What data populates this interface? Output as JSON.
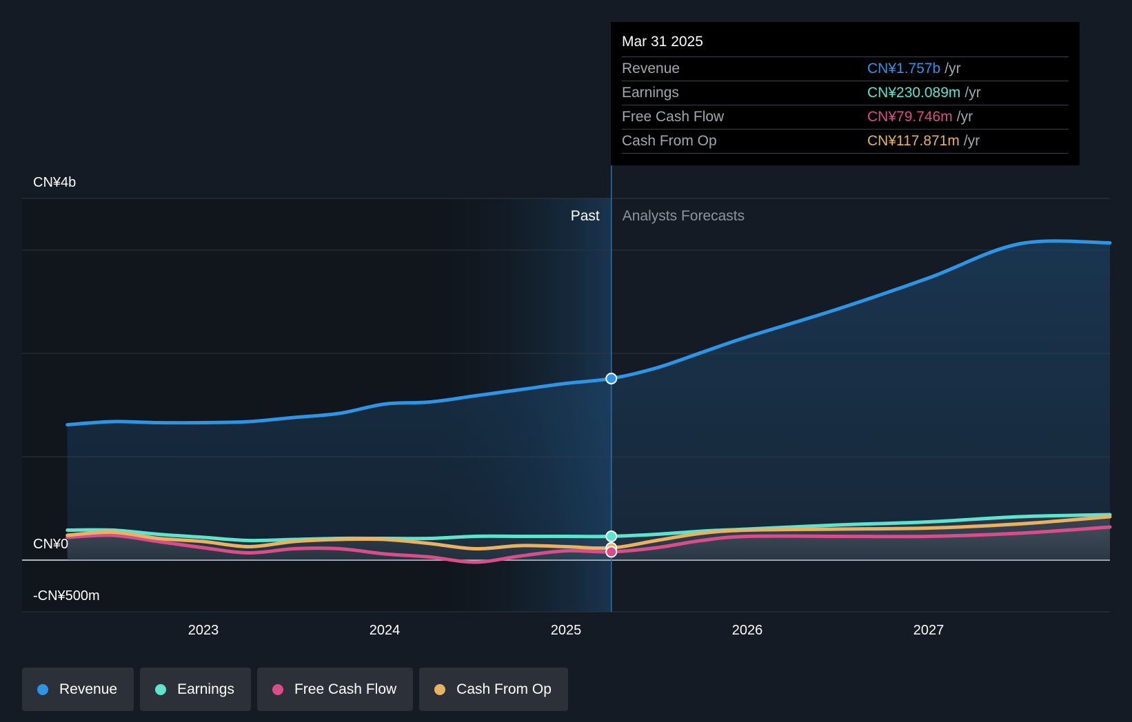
{
  "tooltip": {
    "date": "Mar 31 2025",
    "rows": [
      {
        "name": "Revenue",
        "value": "CN¥1.757b",
        "unit": "/yr",
        "color": "#2d95e3"
      },
      {
        "name": "Earnings",
        "value": "CN¥230.089m",
        "unit": "/yr",
        "color": "#5fe3cf"
      },
      {
        "name": "Free Cash Flow",
        "value": "CN¥79.746m",
        "unit": "/yr",
        "color": "#d94d8a"
      },
      {
        "name": "Cash From Op",
        "value": "CN¥117.871m",
        "unit": "/yr",
        "color": "#e8b261"
      }
    ]
  },
  "regions": {
    "past": "Past",
    "forecast": "Analysts Forecasts"
  },
  "legend": [
    {
      "label": "Revenue",
      "color": "#2d95e3"
    },
    {
      "label": "Earnings",
      "color": "#5fe3cf"
    },
    {
      "label": "Free Cash Flow",
      "color": "#d94d8a"
    },
    {
      "label": "Cash From Op",
      "color": "#e8b261"
    }
  ],
  "chart_data": {
    "type": "line",
    "y_axis_labels": [
      {
        "label": "CN¥4b",
        "value": 3.5
      },
      {
        "label": "CN¥0",
        "value": 0
      },
      {
        "label": "-CN¥500m",
        "value": -0.5
      }
    ],
    "x_ticks": [
      {
        "label": "2023",
        "value": 2023.0
      },
      {
        "label": "2024",
        "value": 2024.0
      },
      {
        "label": "2025",
        "value": 2025.0
      },
      {
        "label": "2026",
        "value": 2026.0
      },
      {
        "label": "2027",
        "value": 2027.0
      }
    ],
    "xlim": [
      2022.0,
      2028.0
    ],
    "ylim": [
      -0.5,
      3.5
    ],
    "units": "CN¥ billions",
    "gridlines": [
      3.5,
      3.0,
      2.0,
      1.0,
      0
    ],
    "past_end": 2025.25,
    "highlight_start": 2024.25,
    "series": [
      {
        "name": "Revenue",
        "color": "#2d95e3",
        "points": [
          [
            2022.25,
            1.31
          ],
          [
            2022.5,
            1.34
          ],
          [
            2022.75,
            1.33
          ],
          [
            2023.0,
            1.33
          ],
          [
            2023.25,
            1.34
          ],
          [
            2023.5,
            1.38
          ],
          [
            2023.75,
            1.42
          ],
          [
            2024.0,
            1.51
          ],
          [
            2024.25,
            1.53
          ],
          [
            2024.5,
            1.59
          ],
          [
            2024.75,
            1.65
          ],
          [
            2025.0,
            1.71
          ],
          [
            2025.25,
            1.757
          ],
          [
            2025.5,
            1.86
          ],
          [
            2025.75,
            2.01
          ],
          [
            2026.0,
            2.16
          ],
          [
            2026.5,
            2.43
          ],
          [
            2027.0,
            2.73
          ],
          [
            2027.5,
            3.06
          ],
          [
            2028.0,
            3.07
          ]
        ]
      },
      {
        "name": "Earnings",
        "color": "#5fe3cf",
        "points": [
          [
            2022.25,
            0.29
          ],
          [
            2022.5,
            0.29
          ],
          [
            2022.75,
            0.25
          ],
          [
            2023.0,
            0.22
          ],
          [
            2023.25,
            0.19
          ],
          [
            2023.5,
            0.2
          ],
          [
            2023.75,
            0.21
          ],
          [
            2024.0,
            0.21
          ],
          [
            2024.25,
            0.21
          ],
          [
            2024.5,
            0.23
          ],
          [
            2024.75,
            0.23
          ],
          [
            2025.0,
            0.23
          ],
          [
            2025.25,
            0.23
          ],
          [
            2025.5,
            0.25
          ],
          [
            2025.75,
            0.28
          ],
          [
            2026.0,
            0.3
          ],
          [
            2026.5,
            0.34
          ],
          [
            2027.0,
            0.37
          ],
          [
            2027.5,
            0.42
          ],
          [
            2028.0,
            0.44
          ]
        ]
      },
      {
        "name": "Free Cash Flow",
        "color": "#d94d8a",
        "points": [
          [
            2022.25,
            0.22
          ],
          [
            2022.5,
            0.24
          ],
          [
            2022.75,
            0.18
          ],
          [
            2023.0,
            0.12
          ],
          [
            2023.25,
            0.07
          ],
          [
            2023.5,
            0.11
          ],
          [
            2023.75,
            0.11
          ],
          [
            2024.0,
            0.06
          ],
          [
            2024.25,
            0.03
          ],
          [
            2024.5,
            -0.02
          ],
          [
            2024.75,
            0.04
          ],
          [
            2025.0,
            0.09
          ],
          [
            2025.25,
            0.08
          ],
          [
            2025.5,
            0.12
          ],
          [
            2025.75,
            0.19
          ],
          [
            2026.0,
            0.23
          ],
          [
            2026.5,
            0.23
          ],
          [
            2027.0,
            0.23
          ],
          [
            2027.5,
            0.26
          ],
          [
            2028.0,
            0.32
          ]
        ]
      },
      {
        "name": "Cash From Op",
        "color": "#e8b261",
        "points": [
          [
            2022.25,
            0.24
          ],
          [
            2022.5,
            0.27
          ],
          [
            2022.75,
            0.21
          ],
          [
            2023.0,
            0.18
          ],
          [
            2023.25,
            0.13
          ],
          [
            2023.5,
            0.18
          ],
          [
            2023.75,
            0.2
          ],
          [
            2024.0,
            0.2
          ],
          [
            2024.25,
            0.16
          ],
          [
            2024.5,
            0.11
          ],
          [
            2024.75,
            0.14
          ],
          [
            2025.0,
            0.13
          ],
          [
            2025.25,
            0.118
          ],
          [
            2025.5,
            0.19
          ],
          [
            2025.75,
            0.26
          ],
          [
            2026.0,
            0.29
          ],
          [
            2026.5,
            0.3
          ],
          [
            2027.0,
            0.31
          ],
          [
            2027.5,
            0.35
          ],
          [
            2028.0,
            0.42
          ]
        ]
      }
    ]
  }
}
